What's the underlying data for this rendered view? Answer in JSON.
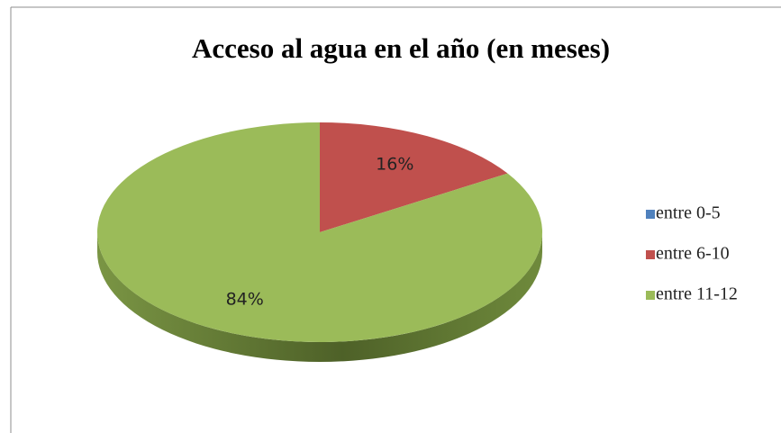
{
  "chart_data": {
    "type": "pie",
    "title": "Acceso al agua en el año (en meses)",
    "categories": [
      "entre 0-5",
      "entre 6-10",
      "entre 11-12"
    ],
    "values": [
      0,
      16,
      84
    ],
    "value_labels": [
      null,
      "16%",
      "84%"
    ],
    "colors": [
      "#4f81bd",
      "#c0504d",
      "#9bbb59"
    ],
    "legend": "right"
  }
}
